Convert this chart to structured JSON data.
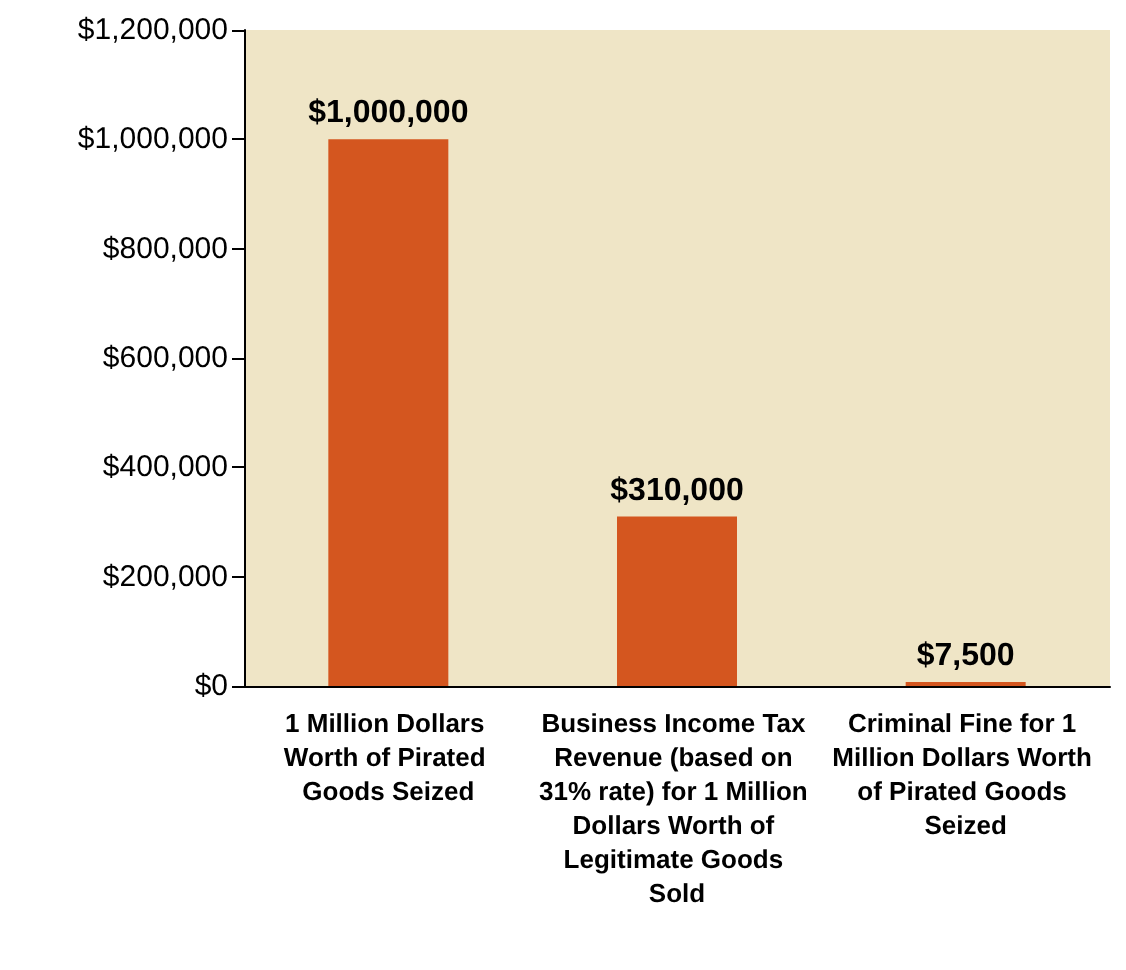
{
  "chart_data": {
    "type": "bar",
    "categories": [
      "1 Million Dollars Worth of Pirated Goods Seized",
      "Business Income Tax Revenue (based on 31% rate) for 1 Million Dollars Worth of Legitimate Goods Sold",
      "Criminal Fine for 1 Million Dollars Worth of Pirated Goods Seized"
    ],
    "values": [
      1000000,
      310000,
      7500
    ],
    "value_labels": [
      "$1,000,000",
      "$310,000",
      "$7,500"
    ],
    "color": "#d4561f",
    "ylim": [
      0,
      1200000
    ],
    "yticks": [
      {
        "value": 0,
        "label": "$0"
      },
      {
        "value": 200000,
        "label": "$200,000"
      },
      {
        "value": 400000,
        "label": "$400,000"
      },
      {
        "value": 600000,
        "label": "$600,000"
      },
      {
        "value": 800000,
        "label": "$800,000"
      },
      {
        "value": 1000000,
        "label": "$1,000,000"
      },
      {
        "value": 1200000,
        "label": "$1,200,000"
      }
    ],
    "grid": false
  }
}
